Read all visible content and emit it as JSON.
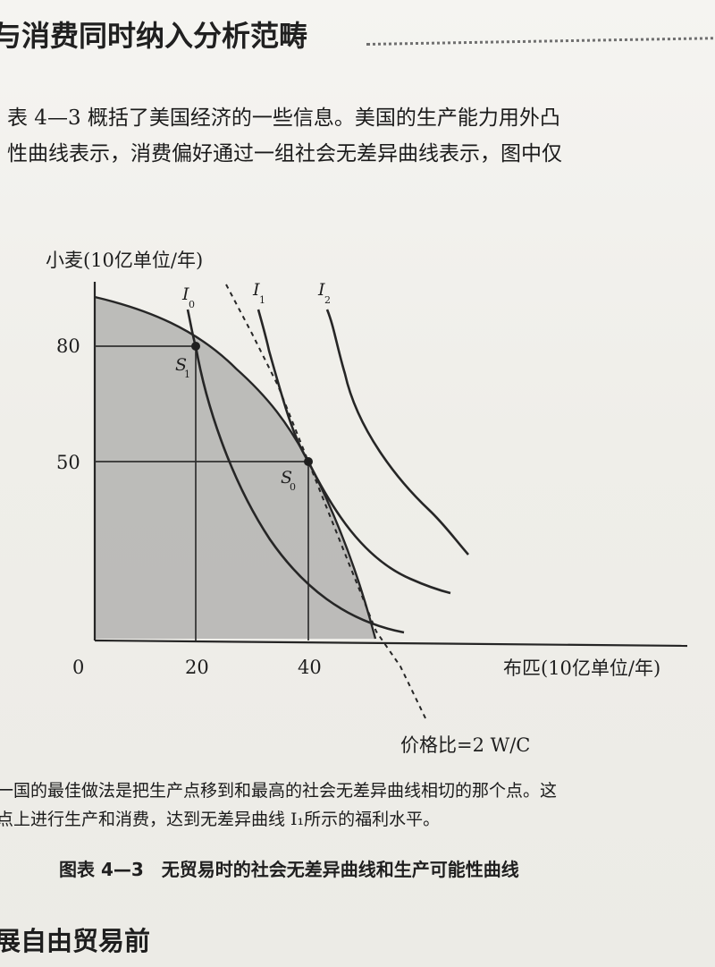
{
  "section_heading": "与消费同时纳入分析范畴",
  "intro_lines": [
    "表 4—3 概括了美国经济的一些信息。美国的生产能力用外凸",
    "性曲线表示，消费偏好通过一组社会无差异曲线表示，图中仅"
  ],
  "chart": {
    "y_axis_title": "小麦(10亿单位/年)",
    "x_axis_title": "布匹(10亿单位/年)",
    "origin_label": "0",
    "y_ticks": [
      "80",
      "50"
    ],
    "x_ticks": [
      "20",
      "40"
    ],
    "curve_labels": {
      "I0_main": "I",
      "I0_sub": "0",
      "I1_main": "I",
      "I1_sub": "1",
      "I2_main": "I",
      "I2_sub": "2"
    },
    "point_labels": {
      "S1_main": "S",
      "S1_sub": "1",
      "S0_main": "S",
      "S0_sub": "0"
    },
    "price_label": "价格比=2 W/C"
  },
  "chart_data": {
    "type": "line",
    "title": "",
    "xlabel": "布匹(10亿单位/年)",
    "ylabel": "小麦(10亿单位/年)",
    "x_ticks": [
      0,
      20,
      40
    ],
    "y_ticks": [
      50,
      80
    ],
    "xlim": [
      0,
      105
    ],
    "ylim": [
      0,
      110
    ],
    "series": [
      {
        "name": "",
        "x": [
          0,
          20,
          40,
          49
        ],
        "y": [
          87,
          80,
          50,
          0
        ]
      },
      {
        "name": "I0",
        "x": [
          18,
          20,
          25,
          30,
          35,
          40,
          45,
          52
        ],
        "y": [
          98,
          80,
          55,
          36,
          22,
          12,
          4,
          2
        ]
      },
      {
        "name": "I1",
        "x": [
          29,
          33,
          40,
          45,
          50,
          57,
          62
        ],
        "y": [
          98,
          80,
          50,
          30,
          17,
          9,
          7
        ]
      },
      {
        "name": "I2",
        "x": [
          41,
          45,
          50,
          55,
          60,
          66
        ],
        "y": [
          98,
          80,
          54,
          37,
          24,
          15
        ]
      },
      {
        "name": "价格比=2 W/C",
        "x": [
          23,
          40,
          58
        ],
        "y": [
          120,
          50,
          -30
        ]
      }
    ],
    "points": [
      {
        "name": "S1",
        "x": 20,
        "y": 80
      },
      {
        "name": "S0",
        "x": 40,
        "y": 50
      }
    ]
  },
  "note_lines": [
    "一国的最佳做法是把生产点移到和最高的社会无差异曲线相切的那个点。这",
    "点上进行生产和消费，达到无差异曲线 I₁所示的福利水平。"
  ],
  "figure_caption": "图表 4—3　无贸易时的社会无差异曲线和生产可能性曲线",
  "bottom_heading": "展自由贸易前"
}
